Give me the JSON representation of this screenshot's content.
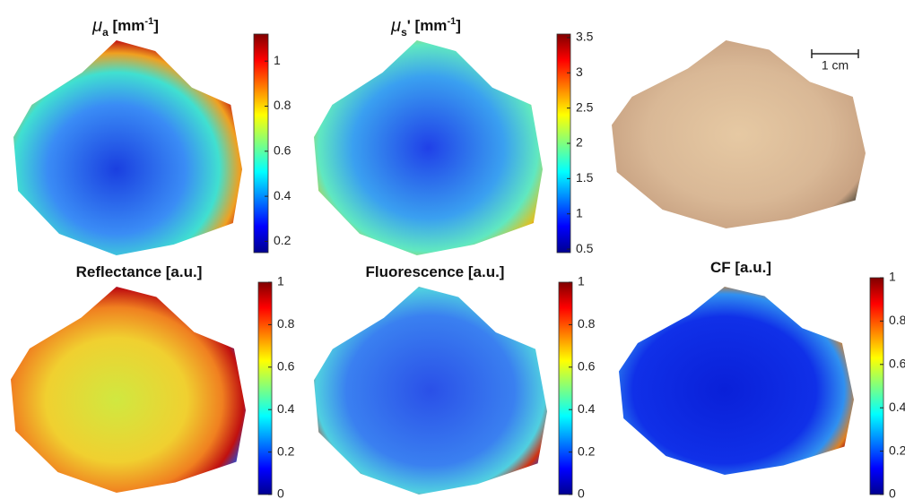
{
  "chart_data": [
    {
      "type": "heatmap",
      "title": [
        {
          "text": "μ",
          "style": "italic"
        },
        {
          "text": "a",
          "style": "sub"
        },
        {
          "text": " [mm",
          "style": "normal"
        },
        {
          "text": "-1",
          "style": "sup"
        },
        {
          "text": "]",
          "style": "normal"
        }
      ],
      "clim": [
        0.15,
        1.12
      ],
      "cticks": [
        0.2,
        0.4,
        0.6,
        0.8,
        1
      ],
      "colormap": "jet"
    },
    {
      "type": "heatmap",
      "title": [
        {
          "text": "μ",
          "style": "italic"
        },
        {
          "text": "s",
          "style": "sub"
        },
        {
          "text": "' [mm",
          "style": "normal"
        },
        {
          "text": "-1",
          "style": "sup"
        },
        {
          "text": "]",
          "style": "normal"
        }
      ],
      "clim": [
        0.45,
        3.55
      ],
      "cticks": [
        0.5,
        1,
        1.5,
        2,
        2.5,
        3,
        3.5
      ],
      "colormap": "jet"
    },
    {
      "type": "photo",
      "scale_label": "1 cm"
    },
    {
      "type": "heatmap",
      "title": [
        {
          "text": "Reflectance [a.u.]",
          "style": "normal"
        }
      ],
      "clim": [
        0,
        1
      ],
      "cticks": [
        0,
        0.2,
        0.4,
        0.6,
        0.8,
        1
      ],
      "colormap": "jet"
    },
    {
      "type": "heatmap",
      "title": [
        {
          "text": "Fluorescence [a.u.]",
          "style": "normal"
        }
      ],
      "clim": [
        0,
        1
      ],
      "cticks": [
        0,
        0.2,
        0.4,
        0.6,
        0.8,
        1
      ],
      "colormap": "jet"
    },
    {
      "type": "heatmap",
      "title": [
        {
          "text": "CF [a.u.]",
          "style": "normal"
        }
      ],
      "clim": [
        0,
        1
      ],
      "cticks": [
        0,
        0.2,
        0.4,
        0.6,
        0.8,
        1
      ],
      "colormap": "jet"
    }
  ]
}
